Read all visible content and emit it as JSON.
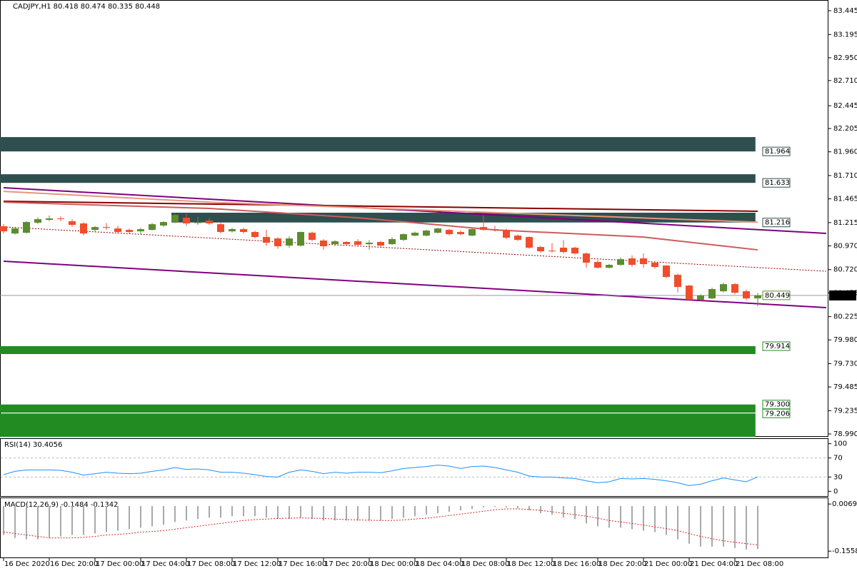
{
  "header": "CADJPY,H1  80.418 80.474 80.335 80.448",
  "chart_data": [
    {
      "type": "candlestick",
      "open": [
        81.176,
        81.1,
        81.108,
        81.214,
        81.244,
        81.259,
        81.229,
        81.206,
        81.138,
        81.168,
        81.153,
        81.138,
        81.123,
        81.138,
        81.184,
        81.221,
        81.266,
        81.21,
        81.236,
        81.198,
        81.123,
        81.146,
        81.116,
        81.063,
        81.048,
        80.973,
        80.973,
        81.108,
        81.026,
        80.988,
        81.011,
        81.018,
        80.988,
        81.011,
        80.988,
        81.033,
        81.078,
        81.078,
        81.108,
        81.138,
        81.116,
        81.078,
        81.168,
        81.146,
        81.138,
        81.078,
        81.063,
        80.958,
        80.92,
        80.951,
        80.951,
        80.89,
        80.8,
        80.74,
        80.77,
        80.838,
        80.838,
        80.793,
        80.763,
        80.665,
        80.552,
        80.402,
        80.417,
        80.492,
        80.567,
        80.492,
        80.418
      ],
      "high": [
        81.2,
        81.17,
        81.23,
        81.27,
        81.29,
        81.28,
        81.25,
        81.22,
        81.18,
        81.21,
        81.18,
        81.15,
        81.16,
        81.21,
        81.23,
        81.31,
        81.31,
        81.28,
        81.26,
        81.21,
        81.16,
        81.16,
        81.13,
        81.14,
        81.06,
        81.07,
        81.12,
        81.12,
        81.04,
        81.03,
        81.02,
        81.04,
        81.03,
        81.02,
        81.06,
        81.1,
        81.12,
        81.14,
        81.16,
        81.15,
        81.13,
        81.15,
        81.29,
        81.18,
        81.15,
        81.09,
        81.07,
        80.97,
        81.0,
        81.03,
        80.96,
        80.9,
        80.82,
        80.78,
        80.85,
        80.87,
        80.89,
        80.81,
        80.77,
        80.68,
        80.56,
        80.46,
        80.53,
        80.58,
        80.58,
        80.51,
        80.474
      ],
      "low": [
        81.1,
        81.09,
        81.1,
        81.2,
        81.23,
        81.23,
        81.17,
        81.08,
        81.12,
        81.14,
        81.1,
        81.1,
        81.09,
        81.13,
        81.17,
        81.21,
        81.18,
        81.19,
        81.19,
        81.1,
        81.11,
        81.1,
        81.05,
        80.97,
        80.94,
        80.95,
        80.96,
        81.02,
        80.93,
        80.97,
        80.97,
        80.96,
        80.93,
        80.96,
        80.98,
        81.02,
        81.07,
        81.07,
        81.1,
        81.08,
        81.08,
        81.07,
        81.13,
        81.12,
        81.04,
        81.02,
        80.94,
        80.9,
        80.9,
        80.89,
        80.88,
        80.74,
        80.73,
        80.73,
        80.76,
        80.75,
        80.74,
        80.73,
        80.63,
        80.48,
        80.39,
        80.39,
        80.41,
        80.48,
        80.46,
        80.4,
        80.335
      ],
      "close": [
        81.123,
        81.153,
        81.221,
        81.251,
        81.259,
        81.255,
        81.191,
        81.1,
        81.168,
        81.16,
        81.116,
        81.116,
        81.146,
        81.198,
        81.221,
        81.296,
        81.206,
        81.22,
        81.206,
        81.116,
        81.146,
        81.116,
        81.063,
        81.003,
        80.966,
        81.048,
        81.116,
        81.033,
        80.966,
        81.018,
        80.988,
        80.981,
        81.003,
        80.973,
        81.041,
        81.093,
        81.108,
        81.131,
        81.153,
        81.093,
        81.093,
        81.146,
        81.138,
        81.14,
        81.056,
        81.033,
        80.951,
        80.913,
        80.918,
        80.905,
        80.89,
        80.793,
        80.74,
        80.77,
        80.83,
        80.77,
        80.778,
        80.748,
        80.643,
        80.537,
        80.402,
        80.447,
        80.515,
        80.567,
        80.477,
        80.417,
        80.448
      ],
      "up_color": "#5b8c2f",
      "down_color": "#ef4d2b",
      "ylim": [
        78.96,
        83.558
      ],
      "yticks": [
        83.445,
        83.195,
        {
          "value": 82.95,
          "label": "82.950"
        },
        {
          "value": 82.71,
          "label": "82.710"
        },
        82.445,
        82.205,
        {
          "value": 81.96,
          "label": "81.960"
        },
        {
          "value": 81.71,
          "label": "81.710"
        },
        81.465,
        81.215,
        {
          "value": 80.97,
          "label": "80.970"
        },
        {
          "value": 80.72,
          "label": "80.720"
        },
        80.475,
        80.225,
        {
          "value": 79.98,
          "label": "79.980"
        },
        {
          "value": 79.73,
          "label": "79.730"
        },
        79.485,
        79.235,
        {
          "value": 78.99,
          "label": "78.990"
        }
      ],
      "x_labels": [
        "16 Dec 2020",
        "16 Dec 20:00",
        "17 Dec 00:00",
        "17 Dec 04:00",
        "17 Dec 08:00",
        "17 Dec 12:00",
        "17 Dec 16:00",
        "17 Dec 20:00",
        "18 Dec 00:00",
        "18 Dec 04:00",
        "18 Dec 08:00",
        "18 Dec 12:00",
        "18 Dec 16:00",
        "18 Dec 20:00",
        "21 Dec 00:00",
        "21 Dec 04:00",
        "21 Dec 08:00"
      ],
      "zones": [
        {
          "level": 81.964,
          "edge": 82.115,
          "start": 0,
          "color": "#2f4f4f"
        },
        {
          "level": 81.633,
          "edge": 81.724,
          "start": 0,
          "color": "#2f4f4f"
        },
        {
          "level": 81.216,
          "edge": 81.319,
          "start": 15,
          "color": "#2f4f4f"
        },
        {
          "level": 79.914,
          "edge": 79.831,
          "start": 0,
          "color": "#228b22"
        },
        {
          "level": {
            "value": 79.3,
            "label": "79.300"
          },
          "edge": 79.215,
          "start": 0,
          "color": "#228b22"
        },
        {
          "level": 79.206,
          "edge": 78.96,
          "start": 0,
          "color": "#228b22"
        }
      ],
      "lines": [
        {
          "color": "#800080",
          "dash": false,
          "x": [
            0,
            72
          ],
          "values": [
            81.582,
            81.101
          ]
        },
        {
          "color": "#800080",
          "dash": false,
          "x": [
            0,
            72
          ],
          "values": [
            80.808,
            80.32
          ]
        },
        {
          "color": "#8b0000",
          "dash": false,
          "x": [
            0,
            66
          ],
          "values": [
            81.439,
            81.334
          ]
        },
        {
          "color": "#e9967a",
          "dash": false,
          "x": [
            0,
            18,
            43,
            66
          ],
          "values": [
            81.544,
            81.43,
            81.32,
            81.22
          ]
        },
        {
          "color": "#cd5c5c",
          "dash": false,
          "x": [
            0,
            18,
            31,
            43,
            56,
            66
          ],
          "values": [
            81.43,
            81.364,
            81.266,
            81.138,
            81.063,
            80.928
          ]
        },
        {
          "color": "#8b0000",
          "dash": true,
          "x": [
            0,
            72
          ],
          "values": [
            81.169,
            80.703
          ]
        }
      ],
      "last_marker": 80.449,
      "price_line": 80.448
    },
    {
      "type": "line",
      "title": "RSI(14) 30.4056",
      "color": "#1e90ff",
      "values": [
        35,
        42,
        45,
        45,
        45,
        44,
        40,
        34,
        37,
        40,
        38,
        37,
        38,
        42,
        45,
        50,
        46,
        47,
        45,
        40,
        40,
        38,
        35,
        31,
        30,
        40,
        45,
        42,
        37,
        40,
        38,
        40,
        40,
        39,
        43,
        48,
        50,
        52,
        55,
        53,
        48,
        52,
        53,
        50,
        45,
        40,
        32,
        30,
        30,
        28,
        27,
        22,
        18,
        20,
        27,
        26,
        27,
        25,
        22,
        18,
        12,
        15,
        22,
        28,
        24,
        20,
        30.41
      ],
      "ylim": [
        -10,
        110
      ],
      "yticks": [
        100,
        70,
        30,
        0
      ],
      "levels": [
        70,
        30
      ]
    },
    {
      "type": "macd",
      "title": "MACD(12,26,9) -0.1484 -0.1342",
      "bar_color": "#a9a9a9",
      "signal_color": "#d62728",
      "histogram": [
        -0.1,
        -0.11,
        -0.115,
        -0.115,
        -0.11,
        -0.105,
        -0.1,
        -0.1,
        -0.095,
        -0.09,
        -0.085,
        -0.08,
        -0.075,
        -0.07,
        -0.065,
        -0.055,
        -0.05,
        -0.045,
        -0.04,
        -0.04,
        -0.035,
        -0.035,
        -0.035,
        -0.04,
        -0.045,
        -0.045,
        -0.04,
        -0.045,
        -0.05,
        -0.05,
        -0.05,
        -0.05,
        -0.05,
        -0.05,
        -0.045,
        -0.04,
        -0.035,
        -0.03,
        -0.025,
        -0.02,
        -0.015,
        -0.01,
        -0.005,
        -0.003,
        -0.005,
        -0.008,
        -0.015,
        -0.025,
        -0.03,
        -0.04,
        -0.045,
        -0.06,
        -0.07,
        -0.075,
        -0.075,
        -0.08,
        -0.085,
        -0.09,
        -0.1,
        -0.115,
        -0.13,
        -0.14,
        -0.14,
        -0.14,
        -0.145,
        -0.15,
        -0.1484
      ],
      "signal": [
        -0.09,
        -0.095,
        -0.1,
        -0.105,
        -0.11,
        -0.11,
        -0.11,
        -0.108,
        -0.105,
        -0.1,
        -0.098,
        -0.095,
        -0.09,
        -0.088,
        -0.085,
        -0.08,
        -0.075,
        -0.07,
        -0.065,
        -0.06,
        -0.055,
        -0.05,
        -0.047,
        -0.045,
        -0.043,
        -0.042,
        -0.041,
        -0.042,
        -0.043,
        -0.045,
        -0.047,
        -0.048,
        -0.049,
        -0.05,
        -0.05,
        -0.048,
        -0.045,
        -0.042,
        -0.038,
        -0.033,
        -0.028,
        -0.023,
        -0.018,
        -0.013,
        -0.01,
        -0.01,
        -0.012,
        -0.015,
        -0.02,
        -0.025,
        -0.03,
        -0.035,
        -0.042,
        -0.05,
        -0.055,
        -0.06,
        -0.066,
        -0.072,
        -0.078,
        -0.085,
        -0.095,
        -0.105,
        -0.113,
        -0.12,
        -0.125,
        -0.13,
        -0.1342
      ],
      "ylim": [
        -0.18,
        0.027
      ],
      "yticks": [
        0.0069,
        -0.1558
      ]
    }
  ]
}
